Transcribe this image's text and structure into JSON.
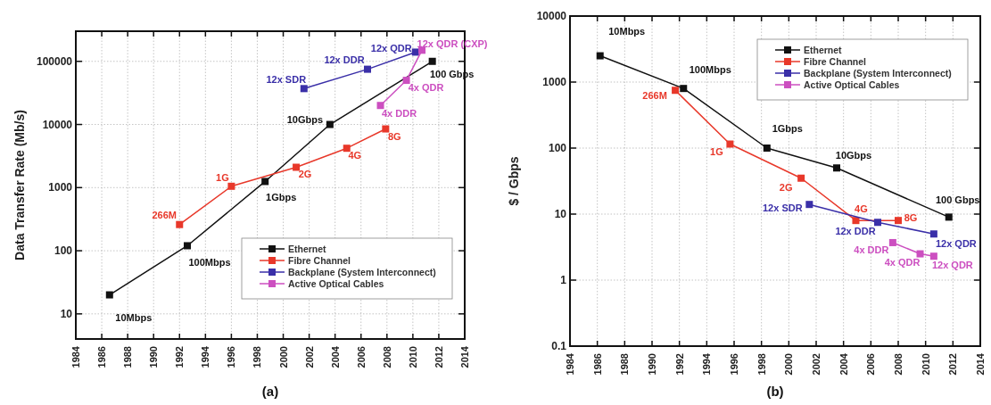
{
  "chart_data": [
    {
      "type": "line",
      "ylabel": "Data Transfer Rate (Mb/s)",
      "xlim": [
        1984,
        2014
      ],
      "xticks": [
        1984,
        1986,
        1988,
        1990,
        1992,
        1994,
        1996,
        1998,
        2000,
        2002,
        2004,
        2006,
        2008,
        2010,
        2012,
        2014
      ],
      "ylim": [
        4,
        300000
      ],
      "yticks": [
        10,
        100,
        1000,
        10000,
        100000
      ],
      "log": "y",
      "grid": true,
      "marker": "square",
      "line_style": "solid",
      "legend": "bottom right",
      "series": [
        {
          "name": "Ethernet",
          "color": "#111111",
          "x": [
            1986.6,
            1992.6,
            1998.6,
            2003.6,
            2011.5
          ],
          "values": [
            20,
            120,
            1250,
            10000,
            100000
          ]
        },
        {
          "name": "Fibre Channel",
          "color": "#e8382a",
          "x": [
            1992.0,
            1996.0,
            2001.0,
            2004.9,
            2007.9
          ],
          "values": [
            260,
            1050,
            2100,
            4200,
            8500
          ]
        },
        {
          "name": "Backplane (System Interconnect)",
          "color": "#3a2fa8",
          "x": [
            2001.6,
            2006.5,
            2010.2
          ],
          "values": [
            37000,
            75000,
            140000
          ]
        },
        {
          "name": "Active Optical Cables",
          "color": "#cc4fc0",
          "x": [
            2007.5,
            2009.5,
            2010.7
          ],
          "values": [
            20000,
            50000,
            150000
          ]
        }
      ],
      "annotations": [
        {
          "text": "10Mbps",
          "x": 1986.6,
          "y": 20
        },
        {
          "text": "100Mbps",
          "x": 1992.6,
          "y": 120
        },
        {
          "text": "1Gbps",
          "x": 1998.6,
          "y": 1250
        },
        {
          "text": "10Gbps",
          "x": 2003.6,
          "y": 10000
        },
        {
          "text": "100 Gbps",
          "x": 2011.5,
          "y": 100000
        },
        {
          "text": "266M",
          "x": 1992.0,
          "y": 260
        },
        {
          "text": "1G",
          "x": 1996.0,
          "y": 1050
        },
        {
          "text": "2G",
          "x": 2001.0,
          "y": 2100
        },
        {
          "text": "4G",
          "x": 2004.9,
          "y": 4200
        },
        {
          "text": "8G",
          "x": 2007.9,
          "y": 8500
        },
        {
          "text": "12x SDR",
          "x": 2001.6,
          "y": 37000
        },
        {
          "text": "12x DDR",
          "x": 2006.5,
          "y": 75000
        },
        {
          "text": "12x QDR",
          "x": 2010.2,
          "y": 140000
        },
        {
          "text": "4x DDR",
          "x": 2007.5,
          "y": 20000
        },
        {
          "text": "4x QDR",
          "x": 2009.5,
          "y": 50000
        },
        {
          "text": "12x QDR (CXP)",
          "x": 2010.7,
          "y": 150000
        },
        "(a)"
      ]
    },
    {
      "type": "line",
      "ylabel": "$ / Gbps",
      "xlim": [
        1984,
        2014
      ],
      "xticks": [
        1984,
        1986,
        1988,
        1990,
        1992,
        1994,
        1996,
        1998,
        2000,
        2002,
        2004,
        2006,
        2008,
        2010,
        2012,
        2014
      ],
      "ylim": [
        0.1,
        10000
      ],
      "yticks": [
        0.1,
        1,
        10,
        100,
        1000,
        10000
      ],
      "log": "y",
      "grid": true,
      "marker": "square",
      "line_style": "solid",
      "legend": "top right",
      "series": [
        {
          "name": "Ethernet",
          "color": "#111111",
          "x": [
            1986.2,
            1992.3,
            1998.4,
            2003.5,
            2011.7
          ],
          "values": [
            2500,
            800,
            100,
            50,
            9
          ]
        },
        {
          "name": "Fibre Channel",
          "color": "#e8382a",
          "x": [
            1991.7,
            1995.7,
            2000.9,
            2004.9,
            2008.0
          ],
          "values": [
            750,
            115,
            35,
            8,
            8
          ]
        },
        {
          "name": "Backplane (System Interconnect)",
          "color": "#3a2fa8",
          "x": [
            2001.5,
            2006.5,
            2010.6
          ],
          "values": [
            14,
            7.5,
            5
          ]
        },
        {
          "name": "Active Optical Cables",
          "color": "#cc4fc0",
          "x": [
            2007.6,
            2009.6,
            2010.6
          ],
          "values": [
            3.7,
            2.5,
            2.3
          ]
        }
      ],
      "annotations": [
        {
          "text": "10Mbps",
          "x": 1986.2,
          "y": 2500
        },
        {
          "text": "100Mbps",
          "x": 1992.3,
          "y": 800
        },
        {
          "text": "1Gbps",
          "x": 1998.4,
          "y": 100
        },
        {
          "text": "10Gbps",
          "x": 2003.5,
          "y": 50
        },
        {
          "text": "100 Gbps",
          "x": 2011.7,
          "y": 9
        },
        {
          "text": "266M",
          "x": 1991.7,
          "y": 750
        },
        {
          "text": "1G",
          "x": 1995.7,
          "y": 115
        },
        {
          "text": "2G",
          "x": 2000.9,
          "y": 35
        },
        {
          "text": "4G",
          "x": 2004.9,
          "y": 8
        },
        {
          "text": "8G",
          "x": 2008.0,
          "y": 8
        },
        {
          "text": "12x SDR",
          "x": 2001.5,
          "y": 14
        },
        {
          "text": "12x DDR",
          "x": 2006.5,
          "y": 7.5
        },
        {
          "text": "12x QDR",
          "x": 2010.6,
          "y": 5
        },
        {
          "text": "4x DDR",
          "x": 2007.6,
          "y": 3.7
        },
        {
          "text": "4x QDR",
          "x": 2009.6,
          "y": 2.5
        },
        {
          "text": "12x QDR",
          "x": 2010.6,
          "y": 2.3
        },
        "(b)"
      ]
    }
  ]
}
